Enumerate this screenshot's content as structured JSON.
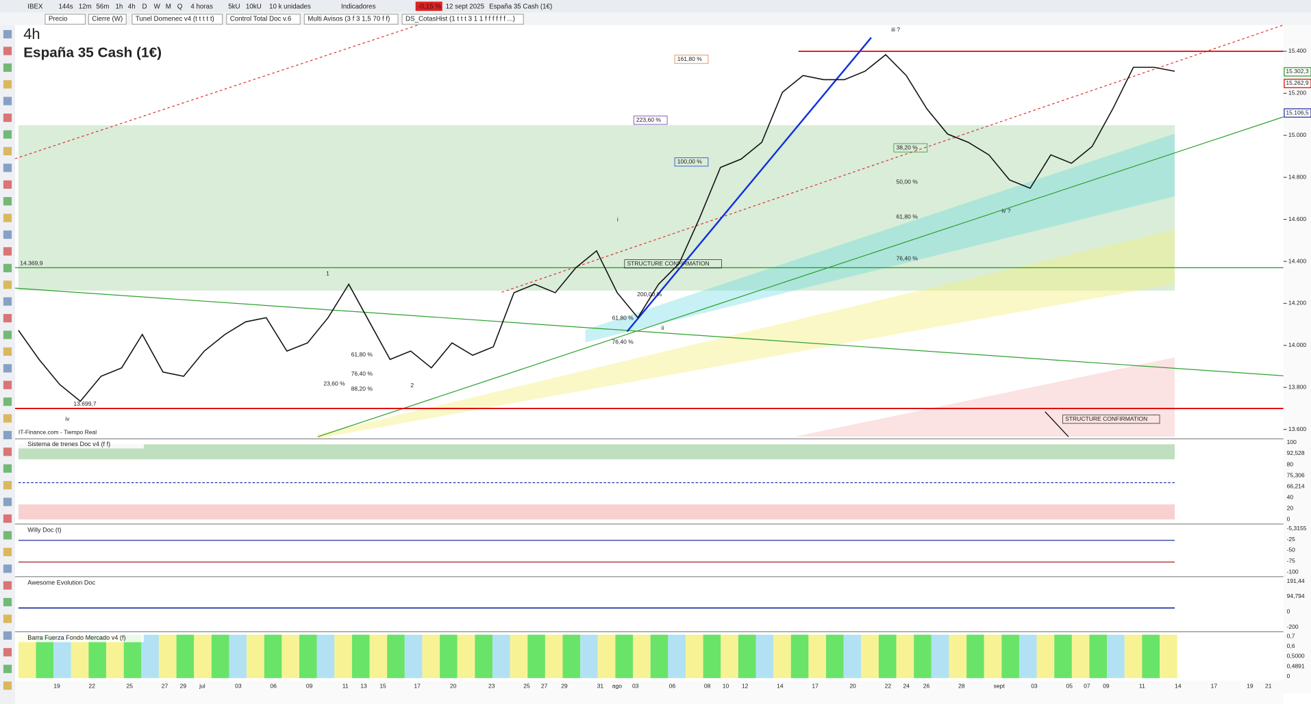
{
  "toolbar": {
    "items": [
      "IBEX",
      "144s",
      "12m",
      "56m",
      "1h",
      "4h",
      "D",
      "W",
      "M",
      "Q",
      "4 horas",
      "5kU",
      "10kU",
      "10 k unidades",
      "Indicadores",
      "-0,15 %",
      "12 sept 2025",
      "España 35 Cash (1€)"
    ]
  },
  "tabs": [
    "Precio",
    "Cierre (W)",
    "Tunel Domenec v4 (t t t t t)",
    "Control Total Doc v.6",
    "Multi Avisos (3 f 3 1,5 70 f f)",
    "DS_CotasHist (1 t t t 3 1 1 f f f f f f ...)"
  ],
  "main": {
    "timeframe": "4h",
    "title": "España 35 Cash (1€)",
    "source": "IT-Finance.com - Tiempo Real",
    "ylim": [
      13565,
      15525
    ],
    "yticks": [
      {
        "value": 15400,
        "label": "15.400"
      },
      {
        "value": 15200,
        "label": "15.200"
      },
      {
        "value": 15000,
        "label": "15.000"
      },
      {
        "value": 14800,
        "label": "14.800"
      },
      {
        "value": 14600,
        "label": "14.600"
      },
      {
        "value": 14400,
        "label": "14.400"
      },
      {
        "value": 14200,
        "label": "14.200"
      },
      {
        "value": 14000,
        "label": "14.000"
      },
      {
        "value": 13800,
        "label": "13.800"
      },
      {
        "value": 13600,
        "label": "13.600"
      }
    ],
    "close": [
      14072,
      13933,
      13814,
      13734,
      13853,
      13893,
      14052,
      13873,
      13853,
      13973,
      14052,
      14112,
      14132,
      13973,
      14012,
      14132,
      14291,
      14112,
      13933,
      13973,
      13893,
      14012,
      13953,
      13993,
      14251,
      14291,
      14251,
      14370,
      14450,
      14251,
      14132,
      14291,
      14390,
      14609,
      14847,
      14887,
      14967,
      15205,
      15285,
      15265,
      15265,
      15305,
      15384,
      15285,
      15126,
      15006,
      14967,
      14907,
      14788,
      14748,
      14907,
      14867,
      14947,
      15126,
      15324,
      15324,
      15305
    ],
    "levels": [
      {
        "value": 15400,
        "color": "#e00000"
      },
      {
        "value": 13699.7,
        "color": "#e00000",
        "label": "13.699,7"
      },
      {
        "value": 14369.9,
        "color": "#1a9a1a",
        "label": "14.369,9"
      }
    ],
    "price_labels": [
      {
        "value": 15302.3,
        "label": "15.302,3",
        "color": "#1a9a1a"
      },
      {
        "value": 15262.9,
        "label": "15.262,9",
        "color": "#d00000"
      },
      {
        "value": 15106.5,
        "label": "15.106,5",
        "color": "#1a2aa0"
      }
    ],
    "annotations": [
      "161,80 %",
      "223,60 %",
      "100,00 %",
      "38,20 %",
      "50,00 %",
      "61,80 %",
      "76,40 %",
      "61,80 %",
      "76,40 %",
      "23,60 %",
      "88,20 %",
      "200,00 %",
      "61,80 %",
      "76,40 %",
      "STRUCTURE CONFIRMATION",
      "STRUCTURE CONFIRMATION",
      "iii ?",
      "iv ?",
      "iv",
      "1",
      "2",
      "i",
      "ii"
    ]
  },
  "panels": [
    {
      "title": "Sistema de trenes Doc v4 (f f)",
      "labels": [
        "100",
        "92,528",
        "80",
        "75,306",
        "66,214",
        "40",
        "20",
        "0"
      ]
    },
    {
      "title": "Willy Doc (t)",
      "labels": [
        "-5,3155",
        "-25",
        "-50",
        "-75",
        "-100"
      ]
    },
    {
      "title": "Awesome Evolution Doc",
      "labels": [
        "191,44",
        "94,794",
        "0",
        "-200"
      ]
    },
    {
      "title": "Barra Fuerza Fondo Mercado v4 (f)",
      "labels": [
        "0,7",
        "0,6",
        "0,5000",
        "0,4891",
        "0"
      ]
    }
  ],
  "xaxis": {
    "labels": [
      "19",
      "22",
      "25",
      "27",
      "29",
      "jul",
      "03",
      "06",
      "09",
      "11",
      "13",
      "15",
      "17",
      "20",
      "23",
      "25",
      "27",
      "29",
      "31",
      "ago",
      "03",
      "06",
      "08",
      "10",
      "12",
      "14",
      "17",
      "20",
      "22",
      "24",
      "26",
      "28",
      "sept",
      "03",
      "05",
      "07",
      "09",
      "11",
      "14",
      "17",
      "19",
      "21"
    ]
  }
}
